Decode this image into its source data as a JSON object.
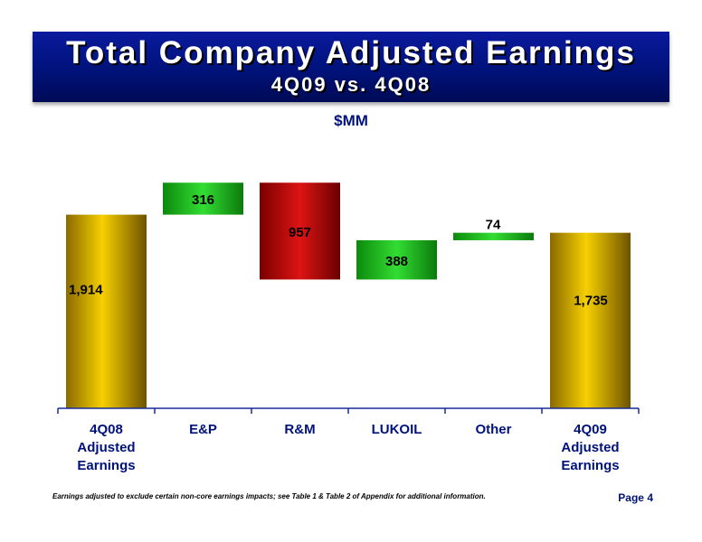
{
  "header": {
    "title": "Total Company Adjusted Earnings",
    "subtitle": "4Q09 vs. 4Q08"
  },
  "unit_label": "$MM",
  "footnote": "Earnings adjusted to exclude certain non-core earnings impacts; see Table 1 & Table 2 of Appendix for additional information.",
  "page_label": "Page 4",
  "colors": {
    "total": "#f2c800",
    "increase": "#22cc22",
    "decrease": "#cc1111",
    "axis": "#1a2a99"
  },
  "chart_data": {
    "type": "bar",
    "subtype": "waterfall",
    "categories": [
      "4Q08\nAdjusted\nEarnings",
      "E&P",
      "R&M",
      "LUKOIL",
      "Other",
      "4Q09\nAdjusted\nEarnings"
    ],
    "values": [
      1914,
      316,
      -957,
      388,
      74,
      1735
    ],
    "labels": [
      "1,914",
      "316",
      "957",
      "388",
      "74",
      "1,735"
    ],
    "kinds": [
      "total",
      "increase",
      "decrease",
      "increase",
      "increase",
      "total"
    ]
  }
}
